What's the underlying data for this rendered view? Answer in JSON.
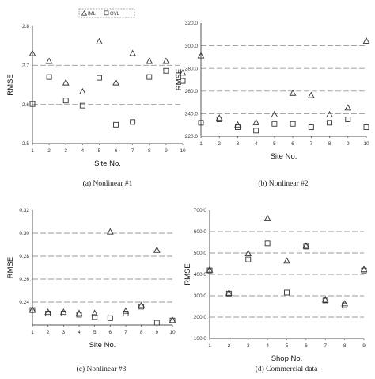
{
  "legend": {
    "series": [
      "IML",
      "OVL"
    ]
  },
  "chart_data": [
    {
      "type": "scatter",
      "title": "",
      "caption": "(a) Nonlinear #1",
      "xlabel": "Site No.",
      "ylabel": "RMSE",
      "xticks": [
        "1",
        "2",
        "3",
        "4",
        "5",
        "6",
        "7",
        "8",
        "9",
        "10"
      ],
      "ylim": [
        2.5,
        2.8
      ],
      "yticks": [
        2.5,
        2.6,
        2.7,
        2.8
      ],
      "ytick_labels": [
        "2.5",
        "2.6",
        "2.7",
        "2.8"
      ],
      "grid": true,
      "legend_position": "top-center",
      "series": [
        {
          "name": "IML",
          "marker": "triangle",
          "values": [
            2.73,
            2.71,
            2.655,
            2.632,
            2.76,
            2.655,
            2.73,
            2.71,
            2.71,
            2.68
          ]
        },
        {
          "name": "OVL",
          "marker": "square",
          "values": [
            2.601,
            2.67,
            2.61,
            2.597,
            2.668,
            2.548,
            2.555,
            2.67,
            2.686,
            2.66
          ]
        }
      ]
    },
    {
      "type": "scatter",
      "title": "",
      "caption": "(b) Nonlinear #2",
      "xlabel": "Site No.",
      "ylabel": "RMSE",
      "xticks": [
        "1",
        "2",
        "3",
        "4",
        "5",
        "6",
        "7",
        "8",
        "9",
        "10"
      ],
      "ylim": [
        220,
        320
      ],
      "yticks": [
        220,
        240,
        260,
        280,
        300,
        320
      ],
      "ytick_labels": [
        "220.0",
        "240.0",
        "260.0",
        "280.0",
        "300.0",
        "320.0"
      ],
      "grid": true,
      "legend_position": "none",
      "series": [
        {
          "name": "IML",
          "marker": "triangle",
          "values": [
            291,
            236,
            230,
            232,
            239,
            258,
            256,
            239,
            245,
            304
          ]
        },
        {
          "name": "OVL",
          "marker": "square",
          "values": [
            232,
            235,
            228,
            225,
            231,
            231,
            228,
            232,
            235,
            228
          ]
        }
      ]
    },
    {
      "type": "scatter",
      "title": "",
      "caption": "(c) Nonlinear #3",
      "xlabel": "Site No.",
      "ylabel": "RMSE",
      "xticks": [
        "1",
        "2",
        "3",
        "4",
        "5",
        "6",
        "7",
        "8",
        "9",
        "10"
      ],
      "ylim": [
        0.22,
        0.32
      ],
      "yticks": [
        0.24,
        0.26,
        0.28,
        0.3,
        0.32
      ],
      "ytick_labels": [
        "0.24",
        "0.26",
        "0.28",
        "0.30",
        "0.32"
      ],
      "grid": true,
      "legend_position": "none",
      "series": [
        {
          "name": "IML",
          "marker": "triangle",
          "values": [
            0.233,
            0.231,
            0.231,
            0.23,
            0.23,
            0.301,
            0.232,
            0.237,
            0.285,
            0.224
          ]
        },
        {
          "name": "OVL",
          "marker": "square",
          "values": [
            0.233,
            0.23,
            0.23,
            0.229,
            0.227,
            0.226,
            0.23,
            0.236,
            0.222,
            0.224
          ]
        }
      ]
    },
    {
      "type": "scatter",
      "title": "",
      "caption": "(d) Commercial data",
      "xlabel": "Shop No.",
      "ylabel": "RMSE",
      "xticks": [
        "1",
        "2",
        "3",
        "4",
        "5",
        "6",
        "7",
        "8",
        "9"
      ],
      "ylim": [
        100,
        700
      ],
      "yticks": [
        100,
        200,
        300,
        400,
        500,
        600,
        700
      ],
      "ytick_labels": [
        "100.0",
        "200.0",
        "300.0",
        "400.0",
        "500.0",
        "600.0",
        "700.0"
      ],
      "grid": true,
      "legend_position": "none",
      "series": [
        {
          "name": "IML",
          "marker": "triangle",
          "values": [
            420,
            312,
            497,
            660,
            462,
            532,
            280,
            262,
            422
          ]
        },
        {
          "name": "OVL",
          "marker": "square",
          "values": [
            418,
            310,
            470,
            545,
            315,
            530,
            278,
            255,
            418
          ]
        }
      ]
    }
  ]
}
